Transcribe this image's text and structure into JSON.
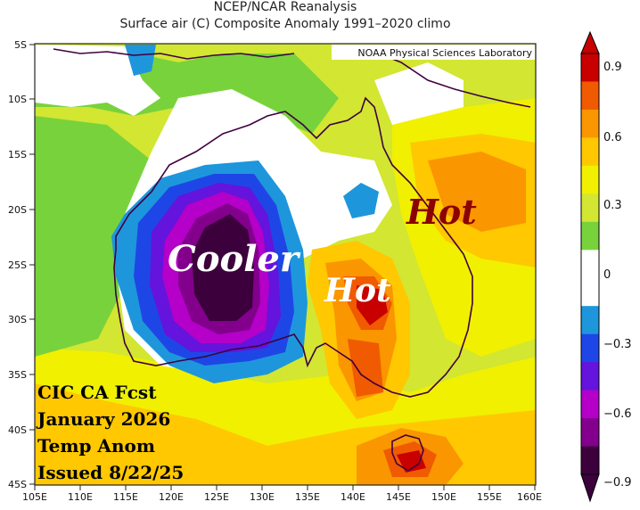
{
  "header": {
    "title": "NCEP/NCAR Reanalysis",
    "subtitle": "Surface air (C) Composite Anomaly 1991–2020 climo"
  },
  "credit": "NOAA Physical Sciences Laboratory",
  "map": {
    "lat_labels": [
      "5S",
      "10S",
      "15S",
      "20S",
      "25S",
      "30S",
      "35S",
      "40S",
      "45S"
    ],
    "lon_labels": [
      "105E",
      "110E",
      "115E",
      "120E",
      "125E",
      "130E",
      "135E",
      "140E",
      "145E",
      "150E",
      "155E",
      "160E"
    ],
    "annotations": {
      "cooler": "Cooler",
      "hot_inland": "Hot",
      "hot_ocean": "Hot"
    },
    "forecast_box": {
      "line1": "CIC CA Fcst",
      "line2": "January 2026",
      "line3": "Temp Anom",
      "line4": "Issued 8/22/25"
    }
  },
  "colorbar": {
    "labels": [
      "0.9",
      "0.6",
      "0.3",
      "0",
      "−0.3",
      "−0.6",
      "−0.9"
    ],
    "colors": [
      "#c80000",
      "#f05a00",
      "#fa9600",
      "#ffc800",
      "#f0f000",
      "#d2e632",
      "#78d23c",
      "#ffffff",
      "#ffffff",
      "#1e96dc",
      "#1e46e6",
      "#6414dc",
      "#b400c8",
      "#82008c",
      "#3c003c"
    ]
  }
}
